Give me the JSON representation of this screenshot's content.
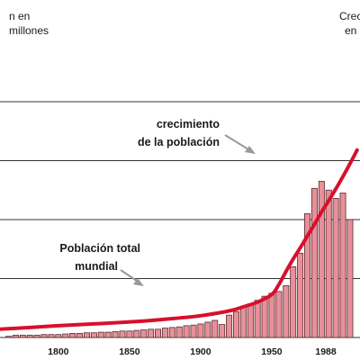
{
  "chart_data": {
    "type": "bar",
    "colors": {
      "bar_fill": "#e8909a",
      "bar_stroke": "#5a2a30",
      "line": "#d8102c",
      "grid": "#333333",
      "arrow": "#999999"
    },
    "texts": {
      "left_axis_label_line1": "n en",
      "left_axis_label_line2": "millones",
      "right_axis_label_line1": "Crec",
      "right_axis_label_line2": "en",
      "growth_annotation_line1": "crecimiento",
      "growth_annotation_line2": "de la población",
      "total_annotation_line1": "Población total",
      "total_annotation_line2": "mundial"
    },
    "x_ticks": [
      "1800",
      "1850",
      "1900",
      "1950",
      "1988"
    ],
    "x_range": [
      1759,
      2012
    ],
    "bar_scale": [
      0,
      100
    ],
    "grid": true,
    "bar_years": [
      1765,
      1770,
      1775,
      1780,
      1785,
      1790,
      1795,
      1800,
      1805,
      1810,
      1815,
      1820,
      1825,
      1830,
      1835,
      1840,
      1845,
      1850,
      1855,
      1860,
      1865,
      1870,
      1875,
      1880,
      1885,
      1890,
      1895,
      1900,
      1905,
      1910,
      1915,
      1920,
      1925,
      1930,
      1935,
      1940,
      1945,
      1950,
      1955,
      1960,
      1965,
      1970,
      1975,
      1980,
      1985,
      1990,
      1995,
      2000,
      2005
    ],
    "growth": [
      2,
      4,
      4,
      4,
      4,
      5,
      5,
      5,
      6,
      7,
      7,
      8,
      8,
      9,
      9,
      10,
      11,
      11,
      12,
      13,
      14,
      14,
      16,
      17,
      18,
      20,
      21,
      23,
      26,
      29,
      22,
      38,
      44,
      52,
      57,
      63,
      70,
      75,
      78,
      88,
      120,
      143,
      210,
      253,
      265,
      250,
      236,
      245,
      200
    ],
    "population_curve": {
      "x": [
        1759,
        1780,
        1800,
        1820,
        1840,
        1860,
        1880,
        1900,
        1920,
        1930,
        1940,
        1950,
        1955,
        1960,
        1965,
        1970,
        1975,
        1980,
        1985,
        1990,
        1995,
        2000,
        2005,
        2010
      ],
      "y": [
        14,
        17,
        20,
        22.5,
        25,
        28,
        32,
        37,
        45,
        52,
        60,
        73,
        90,
        112,
        133,
        152,
        172,
        192,
        213,
        232,
        252,
        273,
        295,
        318
      ]
    }
  }
}
